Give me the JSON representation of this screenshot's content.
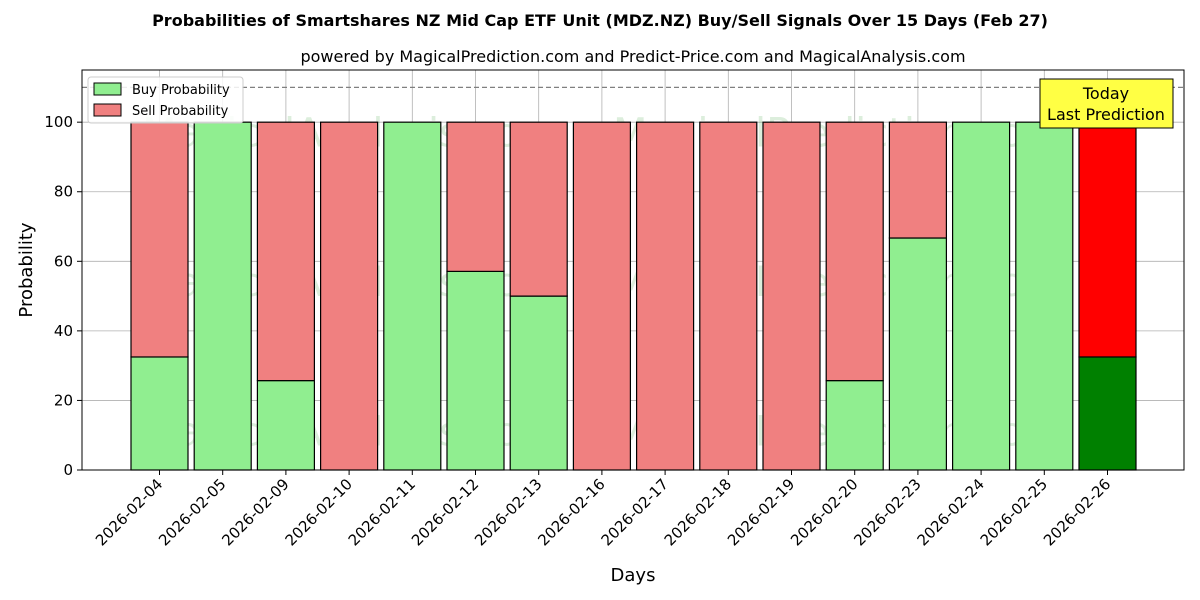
{
  "chart_data": {
    "type": "bar",
    "stacked": true,
    "title": "Probabilities of Smartshares NZ Mid Cap ETF Unit (MDZ.NZ) Buy/Sell Signals Over 15 Days (Feb 27)",
    "subtitle": "powered by MagicalPrediction.com and Predict-Price.com and MagicalAnalysis.com",
    "xlabel": "Days",
    "ylabel": "Probability",
    "ylim": [
      0,
      115
    ],
    "yticks": [
      0,
      20,
      40,
      60,
      80,
      100
    ],
    "grid": true,
    "reference_line": 110,
    "legend_position": "top-left",
    "categories": [
      "2026-02-04",
      "2026-02-05",
      "2026-02-09",
      "2026-02-10",
      "2026-02-11",
      "2026-02-12",
      "2026-02-13",
      "2026-02-16",
      "2026-02-17",
      "2026-02-18",
      "2026-02-19",
      "2026-02-20",
      "2026-02-23",
      "2026-02-24",
      "2026-02-25",
      "2026-02-26"
    ],
    "series": [
      {
        "name": "Buy Probability",
        "color": "#90ee90",
        "values": [
          32.5,
          100,
          25.7,
          0,
          100,
          57.1,
          50,
          0,
          0,
          0,
          0,
          25.7,
          66.7,
          100,
          100,
          32.5
        ]
      },
      {
        "name": "Sell Probability",
        "color": "#f08080",
        "values": [
          67.5,
          0,
          74.3,
          100,
          0,
          42.9,
          50,
          100,
          100,
          100,
          100,
          74.3,
          33.3,
          0,
          0,
          67.5
        ]
      }
    ],
    "highlight": {
      "index": 15,
      "buy_color": "#008000",
      "sell_color": "#ff0000"
    },
    "annotation": {
      "line1": "Today",
      "line2": "Last Prediction",
      "background": "#ffff44"
    },
    "watermarks": [
      "MagicalAnalysis.com",
      "MagicalPrediction.com"
    ]
  }
}
